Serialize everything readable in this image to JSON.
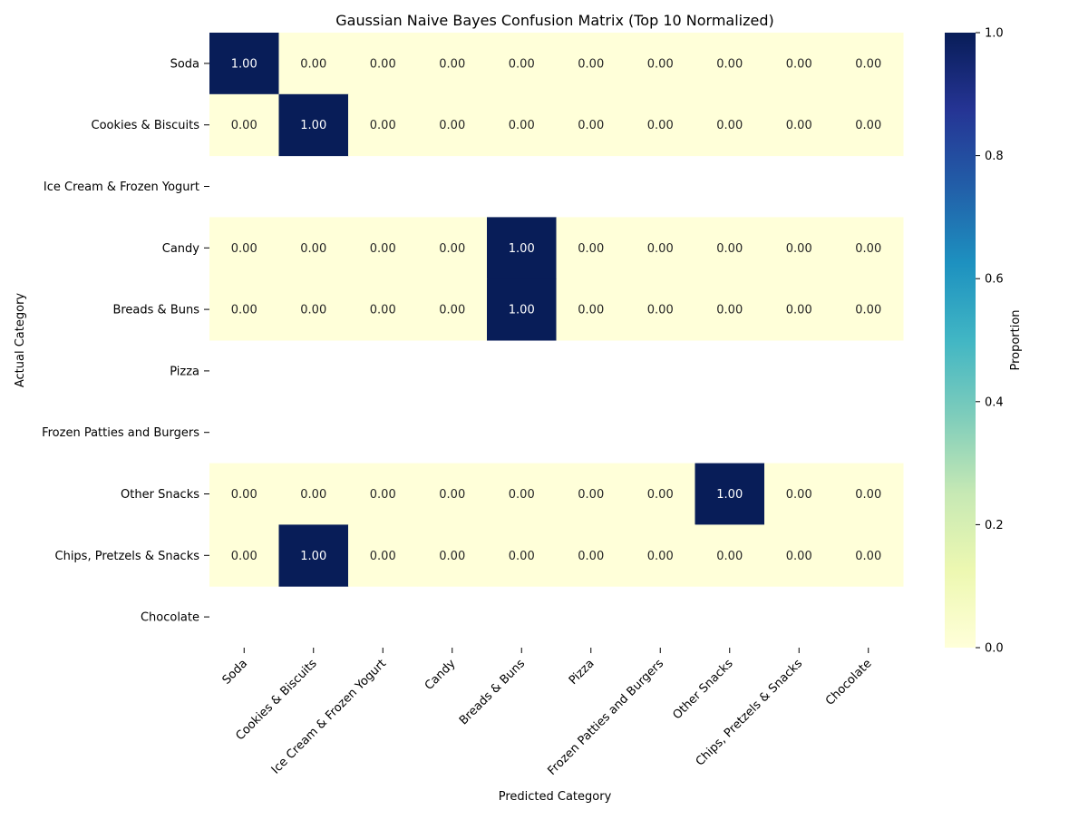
{
  "chart_data": {
    "type": "heatmap",
    "title": "Gaussian Naive Bayes Confusion Matrix (Top 10 Normalized)",
    "xlabel": "Predicted Category",
    "ylabel": "Actual Category",
    "row_labels": [
      "Soda",
      "Cookies & Biscuits",
      "Ice Cream & Frozen Yogurt",
      "Candy",
      "Breads & Buns",
      "Pizza",
      "Frozen Patties and Burgers",
      "Other Snacks",
      "Chips, Pretzels & Snacks",
      "Chocolate"
    ],
    "col_labels": [
      "Soda",
      "Cookies & Biscuits",
      "Ice Cream & Frozen Yogurt",
      "Candy",
      "Breads & Buns",
      "Pizza",
      "Frozen Patties and Burgers",
      "Other Snacks",
      "Chips, Pretzels & Snacks",
      "Chocolate"
    ],
    "values": [
      [
        1,
        0,
        0,
        0,
        0,
        0,
        0,
        0,
        0,
        0
      ],
      [
        0,
        1,
        0,
        0,
        0,
        0,
        0,
        0,
        0,
        0
      ],
      null,
      [
        0,
        0,
        0,
        0,
        1,
        0,
        0,
        0,
        0,
        0
      ],
      [
        0,
        0,
        0,
        0,
        1,
        0,
        0,
        0,
        0,
        0
      ],
      null,
      null,
      [
        0,
        0,
        0,
        0,
        0,
        0,
        0,
        1,
        0,
        0
      ],
      [
        0,
        1,
        0,
        0,
        0,
        0,
        0,
        0,
        0,
        0
      ],
      null
    ],
    "value_format": "0.00",
    "colormap": "YlGnBu",
    "colorbar": {
      "label": "Proportion",
      "range": [
        0,
        1
      ],
      "ticks": [
        "0.0",
        "0.2",
        "0.4",
        "0.6",
        "0.8",
        "1.0"
      ]
    },
    "colors": {
      "low": "#ffffd9",
      "high": "#081d58",
      "text_dark": "#262626",
      "text_light": "#ffffff"
    },
    "grid": false
  }
}
